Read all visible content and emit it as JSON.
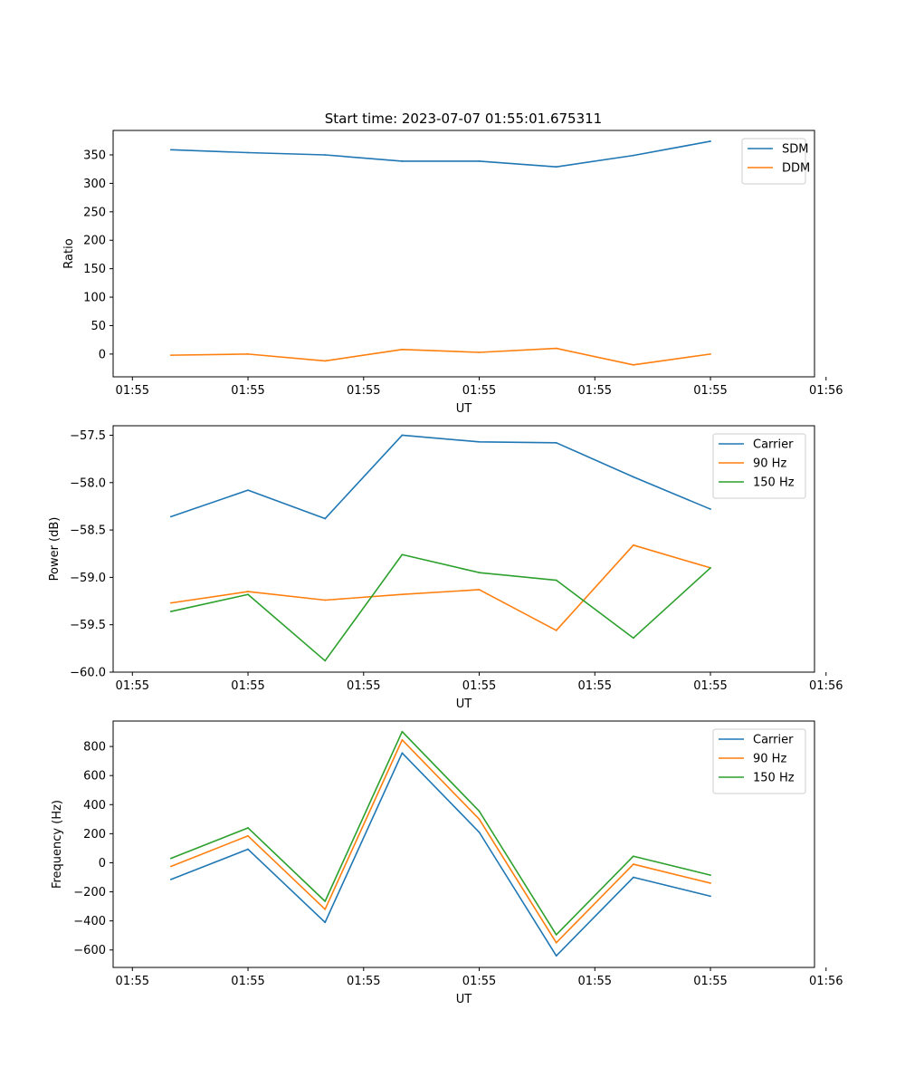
{
  "figure": {
    "title": "Start time: 2023-07-07 01:55:01.675311"
  },
  "chart_data": [
    {
      "type": "line",
      "title": "Start time: 2023-07-07 01:55:01.675311",
      "xlabel": "UT",
      "ylabel": "Ratio",
      "x": [
        1,
        2,
        3,
        4,
        5,
        6,
        7,
        8
      ],
      "xlim": [
        0.25,
        9.35
      ],
      "xticks": [
        0.5,
        2.0,
        3.5,
        5.0,
        6.5,
        8.0,
        9.5
      ],
      "xtick_labels": [
        "01:55",
        "01:55",
        "01:55",
        "01:55",
        "01:55",
        "01:55",
        "01:56"
      ],
      "ylim": [
        -40,
        393
      ],
      "yticks": [
        0,
        50,
        100,
        150,
        200,
        250,
        300,
        350
      ],
      "ytick_labels": [
        "0",
        "50",
        "100",
        "150",
        "200",
        "250",
        "300",
        "350"
      ],
      "legend": "top-right",
      "grid": false,
      "series": [
        {
          "name": "SDM",
          "color": "#1f77b4",
          "values": [
            359,
            354,
            350,
            339,
            339,
            329,
            349,
            374
          ]
        },
        {
          "name": "DDM",
          "color": "#ff7f0e",
          "values": [
            -2,
            0,
            -12,
            8,
            3,
            10,
            -19,
            0
          ]
        }
      ]
    },
    {
      "type": "line",
      "title": "",
      "xlabel": "UT",
      "ylabel": "Power (dB)",
      "x": [
        1,
        2,
        3,
        4,
        5,
        6,
        7,
        8
      ],
      "xlim": [
        0.25,
        9.35
      ],
      "xticks": [
        0.5,
        2.0,
        3.5,
        5.0,
        6.5,
        8.0,
        9.5
      ],
      "xtick_labels": [
        "01:55",
        "01:55",
        "01:55",
        "01:55",
        "01:55",
        "01:55",
        "01:56"
      ],
      "ylim": [
        -60.0,
        -57.4
      ],
      "yticks": [
        -60.0,
        -59.5,
        -59.0,
        -58.5,
        -58.0,
        -57.5
      ],
      "ytick_labels": [
        "−60.0",
        "−59.5",
        "−59.0",
        "−58.5",
        "−58.0",
        "−57.5"
      ],
      "legend": "top-right",
      "grid": false,
      "series": [
        {
          "name": "Carrier",
          "color": "#1f77b4",
          "values": [
            -58.36,
            -58.08,
            -58.38,
            -57.5,
            -57.57,
            -57.58,
            -57.94,
            -58.28
          ]
        },
        {
          "name": "90 Hz",
          "color": "#ff7f0e",
          "values": [
            -59.27,
            -59.15,
            -59.24,
            -59.18,
            -59.13,
            -59.56,
            -58.66,
            -58.9
          ]
        },
        {
          "name": "150 Hz",
          "color": "#2ca02c",
          "values": [
            -59.36,
            -59.18,
            -59.88,
            -58.76,
            -58.95,
            -59.03,
            -59.64,
            -58.9
          ]
        }
      ]
    },
    {
      "type": "line",
      "title": "",
      "xlabel": "UT",
      "ylabel": "Frequency (Hz)",
      "x": [
        1,
        2,
        3,
        4,
        5,
        6,
        7,
        8
      ],
      "xlim": [
        0.25,
        9.35
      ],
      "xticks": [
        0.5,
        2.0,
        3.5,
        5.0,
        6.5,
        8.0,
        9.5
      ],
      "xtick_labels": [
        "01:55",
        "01:55",
        "01:55",
        "01:55",
        "01:55",
        "01:55",
        "01:56"
      ],
      "ylim": [
        -720,
        975
      ],
      "yticks": [
        -600,
        -400,
        -200,
        0,
        200,
        400,
        600,
        800
      ],
      "ytick_labels": [
        "−600",
        "−400",
        "−200",
        "0",
        "200",
        "400",
        "600",
        "800"
      ],
      "legend": "top-right",
      "grid": false,
      "series": [
        {
          "name": "Carrier",
          "color": "#1f77b4",
          "values": [
            -115,
            93,
            -410,
            755,
            210,
            -640,
            -100,
            -230
          ]
        },
        {
          "name": "90 Hz",
          "color": "#ff7f0e",
          "values": [
            -25,
            185,
            -320,
            845,
            300,
            -550,
            -10,
            -140
          ]
        },
        {
          "name": "150 Hz",
          "color": "#2ca02c",
          "values": [
            30,
            240,
            -265,
            902,
            355,
            -495,
            45,
            -85
          ]
        }
      ]
    }
  ]
}
